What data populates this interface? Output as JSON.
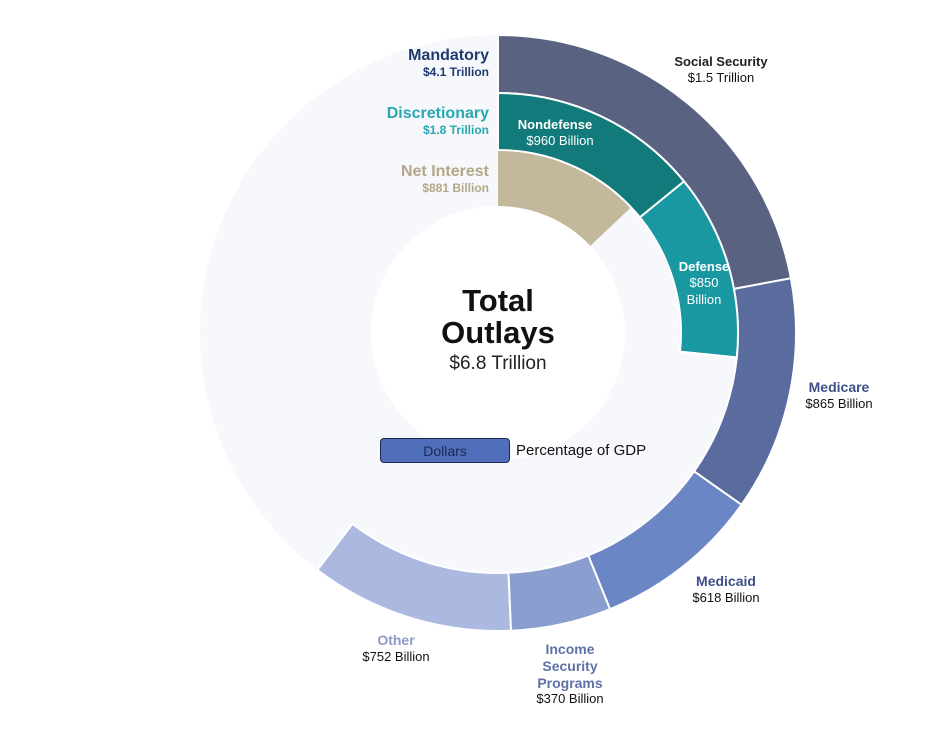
{
  "chart_data": {
    "type": "pie",
    "subtype": "nested-donut",
    "title": "Total Outlays",
    "total": {
      "label": "Total Outlays",
      "value": "$6.8 Trillion",
      "value_num": 6800
    },
    "units": "Billion USD",
    "groups": [
      {
        "name": "Mandatory",
        "value": "$4.1 Trillion",
        "value_num": 4100,
        "color": "#1f3a6e",
        "children": [
          {
            "name": "Social Security",
            "value": "$1.5 Trillion",
            "value_num": 1500,
            "color": "#5a6282"
          },
          {
            "name": "Medicare",
            "value": "$865 Billion",
            "value_num": 865,
            "color": "#5a6c9e"
          },
          {
            "name": "Medicaid",
            "value": "$618 Billion",
            "value_num": 618,
            "color": "#6b86c4"
          },
          {
            "name": "Income Security Programs",
            "value": "$370 Billion",
            "value_num": 370,
            "color": "#8a9fd0"
          },
          {
            "name": "Other",
            "value": "$752 Billion",
            "value_num": 752,
            "color": "#abb8df"
          }
        ]
      },
      {
        "name": "Discretionary",
        "value": "$1.8 Trillion",
        "value_num": 1800,
        "color": "#29a8b0",
        "children": [
          {
            "name": "Nondefense",
            "value": "$960 Billion",
            "value_num": 960,
            "color": "#127a7a"
          },
          {
            "name": "Defense",
            "value": "$850 Billion",
            "value_num": 850,
            "color": "#1a98a2"
          }
        ]
      },
      {
        "name": "Net Interest",
        "value": "$881 Billion",
        "value_num": 881,
        "color": "#c3b79c",
        "children": []
      }
    ]
  },
  "labels": {
    "mandatory": {
      "name": "Mandatory",
      "value": "$4.1 Trillion"
    },
    "discretionary": {
      "name": "Discretionary",
      "value": "$1.8 Trillion"
    },
    "net_interest": {
      "name": "Net Interest",
      "value": "$881 Billion"
    },
    "social_security": {
      "name": "Social Security",
      "value": "$1.5 Trillion"
    },
    "medicare": {
      "name": "Medicare",
      "value": "$865 Billion"
    },
    "medicaid": {
      "name": "Medicaid",
      "value": "$618 Billion"
    },
    "income_security": {
      "name_l1": "Income",
      "name_l2": "Security",
      "name_l3": "Programs",
      "value": "$370 Billion"
    },
    "other": {
      "name": "Other",
      "value": "$752 Billion"
    },
    "nondefense": {
      "name": "Nondefense",
      "value": "$960 Billion"
    },
    "defense": {
      "name": "Defense",
      "value_l1": "$850",
      "value_l2": "Billion"
    }
  },
  "center": {
    "title_l1": "Total",
    "title_l2": "Outlays",
    "value": "$6.8 Trillion"
  },
  "toggle": {
    "dollars": "Dollars",
    "percentage": "Percentage of GDP",
    "selected": "Dollars"
  },
  "colors": {
    "ring_background": "#f6f8fc",
    "mandatory_text": "#1f3a6e",
    "discretionary_text": "#29a8b0",
    "net_interest_text": "#b3a788",
    "mandatory_sub_text": "#3d5087",
    "other_text": "#8d9bc4"
  }
}
